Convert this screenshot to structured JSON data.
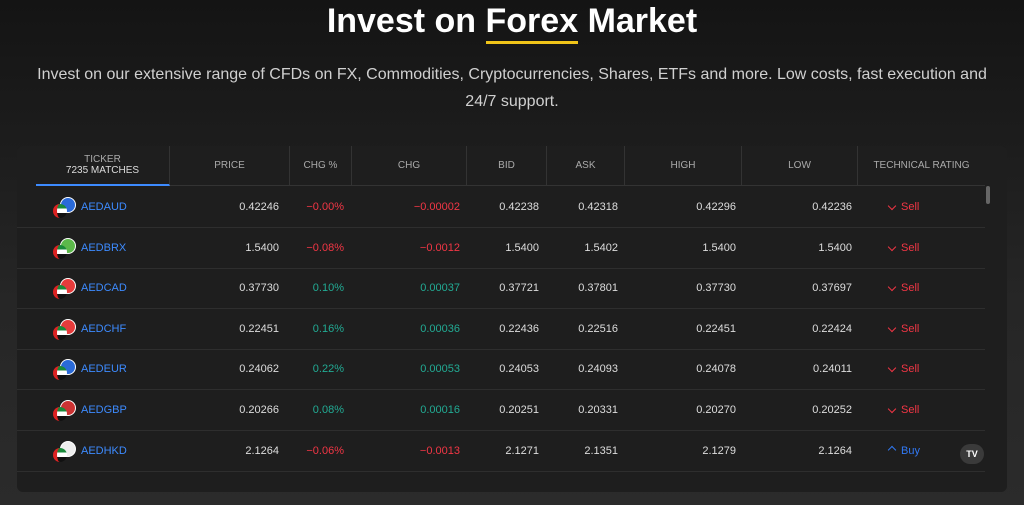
{
  "header": {
    "title_prefix": "Invest on",
    "title_highlight": "Forex",
    "title_suffix": "Market",
    "subtitle": "Invest on our extensive range of CFDs on FX, Commodities, Cryptocurrencies, Shares, ETFs and more. Low costs, fast execution and 24/7 support."
  },
  "table": {
    "ticker_label": "TICKER",
    "matches": "7235 MATCHES",
    "columns": [
      "PRICE",
      "CHG %",
      "CHG",
      "BID",
      "ASK",
      "HIGH",
      "LOW",
      "TECHNICAL RATING"
    ],
    "rows": [
      {
        "ticker": "AEDAUD",
        "cells": [
          "0.42246",
          "−0.00%",
          "−0.00002",
          "0.42238",
          "0.42318",
          "0.42296",
          "0.42236",
          "Sell"
        ],
        "chg_color": "#f23645",
        "rating_color": "#f23645"
      },
      {
        "ticker": "AEDBRX",
        "cells": [
          "1.5400",
          "−0.08%",
          "−0.0012",
          "1.5400",
          "1.5402",
          "1.5400",
          "1.5400",
          "Sell"
        ],
        "chg_color": "#f23645",
        "rating_color": "#f23645"
      },
      {
        "ticker": "AEDCAD",
        "cells": [
          "0.37730",
          "0.10%",
          "0.00037",
          "0.37721",
          "0.37801",
          "0.37730",
          "0.37697",
          "Sell"
        ],
        "chg_color": "#22ab94",
        "rating_color": "#f23645"
      },
      {
        "ticker": "AEDCHF",
        "cells": [
          "0.22451",
          "0.16%",
          "0.00036",
          "0.22436",
          "0.22516",
          "0.22451",
          "0.22424",
          "Sell"
        ],
        "chg_color": "#22ab94",
        "rating_color": "#f23645"
      },
      {
        "ticker": "AEDEUR",
        "cells": [
          "0.24062",
          "0.22%",
          "0.00053",
          "0.24053",
          "0.24093",
          "0.24078",
          "0.24011",
          "Sell"
        ],
        "chg_color": "#22ab94",
        "rating_color": "#f23645"
      },
      {
        "ticker": "AEDGBP",
        "cells": [
          "0.20266",
          "0.08%",
          "0.00016",
          "0.20251",
          "0.20331",
          "0.20270",
          "0.20252",
          "Sell"
        ],
        "chg_color": "#22ab94",
        "rating_color": "#f23645"
      },
      {
        "ticker": "AEDHKD",
        "cells": [
          "2.1264",
          "−0.06%",
          "−0.0013",
          "2.1271",
          "2.1351",
          "2.1279",
          "2.1264",
          "Buy"
        ],
        "chg_color": "#f23645",
        "rating_color": "#3179f5"
      }
    ]
  }
}
